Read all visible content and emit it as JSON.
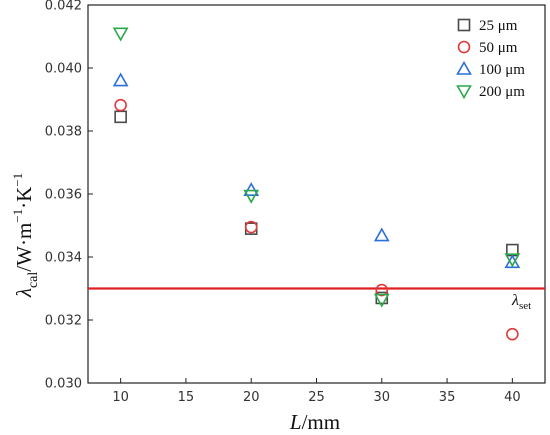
{
  "chart_data": {
    "type": "scatter",
    "xlabel": {
      "var": "L",
      "unit": "/mm"
    },
    "ylabel": {
      "var": "λ",
      "sub": "cal",
      "unit": "/W·m",
      "exp1": "−1",
      "mid": "·K",
      "exp2": "−1"
    },
    "xlim": [
      7.5,
      42.5
    ],
    "ylim": [
      0.03,
      0.042
    ],
    "xticks": [
      10,
      15,
      20,
      25,
      30,
      35,
      40
    ],
    "yticks": [
      0.03,
      0.032,
      0.034,
      0.036,
      0.038,
      0.04,
      0.042
    ],
    "ytick_labels": [
      "0.030",
      "0.032",
      "0.034",
      "0.036",
      "0.038",
      "0.040",
      "0.042"
    ],
    "legend_position": "top-right",
    "series": [
      {
        "name": "25 μm",
        "marker": "square",
        "color": "#4a4a4a",
        "x": [
          10,
          20,
          30,
          40
        ],
        "y": [
          0.03845,
          0.0349,
          0.0327,
          0.03422
        ]
      },
      {
        "name": "50 μm",
        "marker": "circle",
        "color": "#e03a3a",
        "x": [
          10,
          20,
          30,
          40
        ],
        "y": [
          0.03882,
          0.03495,
          0.03295,
          0.03155
        ]
      },
      {
        "name": "100 μm",
        "marker": "triangle-up",
        "color": "#2a6fdb",
        "x": [
          10,
          20,
          30,
          40
        ],
        "y": [
          0.0396,
          0.03612,
          0.03468,
          0.03383
        ]
      },
      {
        "name": "200 μm",
        "marker": "triangle-down",
        "color": "#2ca84a",
        "x": [
          10,
          20,
          30,
          40
        ],
        "y": [
          0.0411,
          0.03595,
          0.03265,
          0.03393
        ]
      }
    ],
    "reference_line": {
      "y": 0.033,
      "color": "#e02020",
      "label_var": "λ",
      "label_sub": "set"
    }
  }
}
